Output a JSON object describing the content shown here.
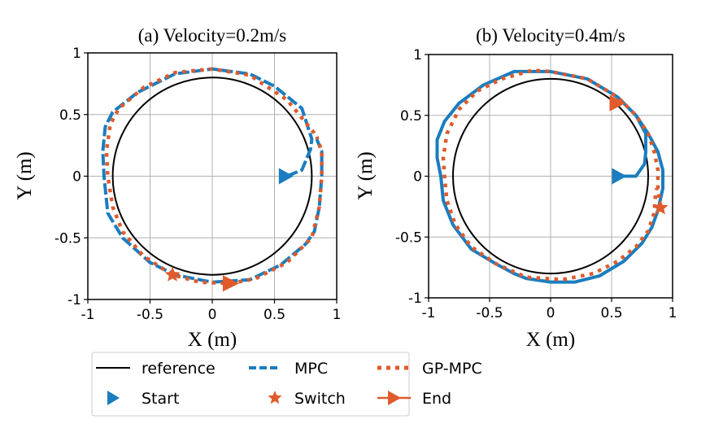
{
  "chart_data": [
    {
      "type": "line",
      "title": "(a) Velocity=0.2m/s",
      "xlabel": "X (m)",
      "ylabel": "Y (m)",
      "xlim": [
        -1,
        1
      ],
      "ylim": [
        -1,
        1
      ],
      "xticks": [
        "-1",
        "-0.5",
        "0",
        "0.5",
        "1"
      ],
      "yticks": [
        "-1",
        "-0.5",
        "0",
        "0.5",
        "1"
      ],
      "xtick_values": [
        -1,
        -0.5,
        0,
        0.5,
        1
      ],
      "ytick_values": [
        -1,
        -0.5,
        0,
        0.5,
        1
      ],
      "grid": true,
      "reference_radius": 0.8,
      "series": [
        {
          "name": "MPC",
          "points": [
            [
              0.6,
              0
            ],
            [
              0.72,
              0.05
            ],
            [
              0.79,
              0.22
            ],
            [
              0.8,
              0.3
            ],
            [
              0.72,
              0.55
            ],
            [
              0.5,
              0.73
            ],
            [
              0.3,
              0.83
            ],
            [
              0,
              0.87
            ],
            [
              -0.3,
              0.83
            ],
            [
              -0.6,
              0.68
            ],
            [
              -0.8,
              0.52
            ],
            [
              -0.86,
              0.4
            ],
            [
              -0.88,
              0.2
            ],
            [
              -0.87,
              0
            ],
            [
              -0.84,
              -0.3
            ],
            [
              -0.72,
              -0.5
            ],
            [
              -0.5,
              -0.7
            ],
            [
              -0.3,
              -0.8
            ],
            [
              0,
              -0.86
            ],
            [
              0.3,
              -0.84
            ],
            [
              0.55,
              -0.72
            ],
            [
              0.75,
              -0.55
            ],
            [
              0.82,
              -0.45
            ],
            [
              0.86,
              -0.25
            ],
            [
              0.88,
              0
            ],
            [
              0.88,
              0.2
            ],
            [
              0.84,
              0.3
            ]
          ]
        },
        {
          "name": "GP-MPC",
          "points": [
            [
              0.82,
              0.35
            ],
            [
              0.6,
              0.62
            ],
            [
              0.3,
              0.82
            ],
            [
              0,
              0.87
            ],
            [
              -0.3,
              0.84
            ],
            [
              -0.55,
              0.72
            ],
            [
              -0.75,
              0.55
            ],
            [
              -0.82,
              0.42
            ],
            [
              -0.85,
              0.2
            ],
            [
              -0.84,
              0
            ],
            [
              -0.8,
              -0.25
            ],
            [
              -0.72,
              -0.45
            ],
            [
              -0.55,
              -0.65
            ],
            [
              -0.32,
              -0.8
            ],
            [
              -0.1,
              -0.86
            ],
            [
              0.15,
              -0.87
            ],
            [
              0.35,
              -0.83
            ],
            [
              0.6,
              -0.7
            ],
            [
              0.8,
              -0.5
            ],
            [
              0.86,
              -0.25
            ],
            [
              0.88,
              0
            ],
            [
              0.88,
              0.2
            ],
            [
              0.84,
              0.32
            ]
          ]
        }
      ],
      "markers": {
        "start": [
          0.6,
          0
        ],
        "switch": [
          -0.32,
          -0.8
        ],
        "end": [
          0.15,
          -0.87
        ]
      }
    },
    {
      "type": "line",
      "title": "(b) Velocity=0.4m/s",
      "xlabel": "X (m)",
      "ylabel": "Y (m)",
      "xlim": [
        -1,
        1
      ],
      "ylim": [
        -1,
        1
      ],
      "xticks": [
        "-1",
        "-0.5",
        "0",
        "0.5",
        "1"
      ],
      "yticks": [
        "-1",
        "-0.5",
        "0",
        "0.5",
        "1"
      ],
      "xtick_values": [
        -1,
        -0.5,
        0,
        0.5,
        1
      ],
      "ytick_values": [
        -1,
        -0.5,
        0,
        0.5,
        1
      ],
      "grid": true,
      "reference_radius": 0.8,
      "series": [
        {
          "name": "MPC",
          "points": [
            [
              0.57,
              0
            ],
            [
              0.7,
              0
            ],
            [
              0.77,
              0.1
            ],
            [
              0.78,
              0.2
            ],
            [
              0.78,
              0.35
            ],
            [
              0.7,
              0.5
            ],
            [
              0.55,
              0.65
            ],
            [
              0.3,
              0.8
            ],
            [
              0,
              0.86
            ],
            [
              -0.3,
              0.86
            ],
            [
              -0.55,
              0.75
            ],
            [
              -0.75,
              0.6
            ],
            [
              -0.87,
              0.45
            ],
            [
              -0.93,
              0.3
            ],
            [
              -0.93,
              0.15
            ],
            [
              -0.9,
              0
            ],
            [
              -0.88,
              -0.2
            ],
            [
              -0.8,
              -0.4
            ],
            [
              -0.65,
              -0.6
            ],
            [
              -0.45,
              -0.72
            ],
            [
              -0.3,
              -0.8
            ],
            [
              -0.2,
              -0.84
            ],
            [
              0,
              -0.87
            ],
            [
              0.2,
              -0.87
            ],
            [
              0.4,
              -0.82
            ],
            [
              0.6,
              -0.7
            ],
            [
              0.75,
              -0.55
            ],
            [
              0.83,
              -0.42
            ],
            [
              0.88,
              -0.28
            ],
            [
              0.92,
              -0.1
            ],
            [
              0.92,
              0.05
            ],
            [
              0.88,
              0.2
            ],
            [
              0.8,
              0.35
            ],
            [
              0.7,
              0.5
            ],
            [
              0.6,
              0.6
            ]
          ]
        },
        {
          "name": "GP-MPC",
          "points": [
            [
              0.9,
              -0.25
            ],
            [
              0.88,
              -0.1
            ],
            [
              0.88,
              0.05
            ],
            [
              0.85,
              0.2
            ],
            [
              0.8,
              0.35
            ],
            [
              0.7,
              0.5
            ],
            [
              0.55,
              0.65
            ],
            [
              0.3,
              0.8
            ],
            [
              0,
              0.86
            ],
            [
              -0.15,
              0.87
            ],
            [
              -0.4,
              0.8
            ],
            [
              -0.6,
              0.7
            ],
            [
              -0.75,
              0.55
            ],
            [
              -0.85,
              0.35
            ],
            [
              -0.88,
              0.15
            ],
            [
              -0.87,
              0
            ],
            [
              -0.85,
              -0.2
            ],
            [
              -0.78,
              -0.4
            ],
            [
              -0.65,
              -0.58
            ],
            [
              -0.45,
              -0.72
            ],
            [
              -0.2,
              -0.83
            ],
            [
              0.1,
              -0.85
            ],
            [
              0.35,
              -0.8
            ],
            [
              0.55,
              -0.7
            ],
            [
              0.7,
              -0.58
            ],
            [
              0.8,
              -0.45
            ],
            [
              0.85,
              -0.3
            ],
            [
              0.86,
              -0.15
            ],
            [
              0.87,
              -0.1
            ]
          ]
        }
      ],
      "markers": {
        "start": [
          0.57,
          0
        ],
        "switch": [
          0.9,
          -0.26
        ],
        "end": [
          0.55,
          0.6
        ]
      }
    }
  ],
  "legend": {
    "placement": "bottom-center",
    "entries": [
      {
        "label": "reference",
        "style": "solid-line",
        "color": "#000000"
      },
      {
        "label": "MPC",
        "style": "dashed-line",
        "color": "#1f77b4"
      },
      {
        "label": "GP-MPC",
        "style": "dotted-line",
        "color": "#e0592a"
      },
      {
        "label": "Start",
        "style": "triangle-marker",
        "color": "#1f77b4"
      },
      {
        "label": "Switch",
        "style": "star-marker",
        "color": "#e0592a"
      },
      {
        "label": "End",
        "style": "line-triangle-marker",
        "color": "#e0592a"
      }
    ]
  },
  "colors": {
    "mpc": "#1a7dbf",
    "gpmpc": "#e05a2b",
    "reference": "#000000",
    "grid": "#b0b0b0"
  }
}
